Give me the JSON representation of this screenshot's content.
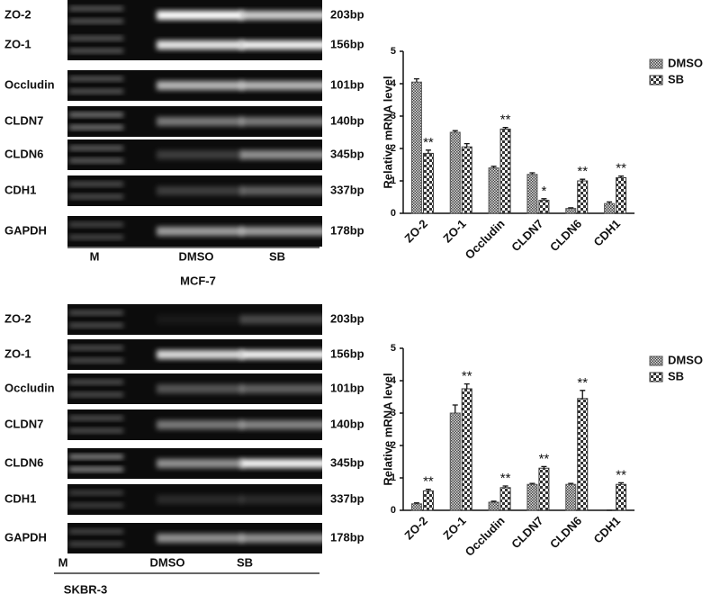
{
  "gels": [
    {
      "rows": [
        {
          "gene": "ZO-2",
          "size": "203bp"
        },
        {
          "gene": "ZO-1",
          "size": "156bp"
        },
        {
          "gene": "Occludin",
          "size": "101bp"
        },
        {
          "gene": "CLDN7",
          "size": "140bp"
        },
        {
          "gene": "CLDN6",
          "size": "345bp"
        },
        {
          "gene": "CDH1",
          "size": "337bp"
        },
        {
          "gene": "GAPDH",
          "size": "178bp"
        }
      ],
      "lanes": [
        "M",
        "DMSO",
        "SB"
      ],
      "cell_line": "MCF-7"
    },
    {
      "rows": [
        {
          "gene": "ZO-2",
          "size": "203bp"
        },
        {
          "gene": "ZO-1",
          "size": "156bp"
        },
        {
          "gene": "Occludin",
          "size": "101bp"
        },
        {
          "gene": "CLDN7",
          "size": "140bp"
        },
        {
          "gene": "CLDN6",
          "size": "345bp"
        },
        {
          "gene": "CDH1",
          "size": "337bp"
        },
        {
          "gene": "GAPDH",
          "size": "178bp"
        }
      ],
      "lanes": [
        "M",
        "DMSO",
        "SB"
      ],
      "cell_line": "SKBR-3"
    }
  ],
  "chart_data": [
    {
      "type": "bar",
      "ylabel": "Relative mRNA level",
      "categories": [
        "ZO-2",
        "ZO-1",
        "Occludin",
        "CLDN7",
        "CLDN6",
        "CDH1"
      ],
      "series": [
        {
          "name": "DMSO",
          "color": "#555555",
          "pattern": "fine",
          "values": [
            4.05,
            2.5,
            1.4,
            1.2,
            0.15,
            0.3
          ],
          "errors": [
            0.1,
            0.05,
            0.05,
            0.05,
            0.02,
            0.05
          ],
          "significance": [
            null,
            null,
            null,
            null,
            null,
            null
          ]
        },
        {
          "name": "SB",
          "color": "#333333",
          "pattern": "coarse",
          "values": [
            1.85,
            2.05,
            2.6,
            0.4,
            1.0,
            1.1
          ],
          "errors": [
            0.1,
            0.1,
            0.05,
            0.05,
            0.05,
            0.05
          ],
          "significance": [
            "**",
            null,
            "**",
            "*",
            "**",
            "**"
          ]
        }
      ],
      "ylim": [
        0,
        5
      ],
      "yticks": [
        0,
        1,
        2,
        3,
        4,
        5
      ],
      "legend": "upper right"
    },
    {
      "type": "bar",
      "ylabel": "Relative mRNA level",
      "categories": [
        "ZO-2",
        "ZO-1",
        "Occludin",
        "CLDN7",
        "CLDN6",
        "CDH1"
      ],
      "series": [
        {
          "name": "DMSO",
          "color": "#555555",
          "pattern": "fine",
          "values": [
            0.2,
            3.0,
            0.25,
            0.8,
            0.8,
            0
          ],
          "errors": [
            0.03,
            0.25,
            0.03,
            0.03,
            0.03,
            0
          ],
          "significance": [
            null,
            null,
            null,
            null,
            null,
            null
          ]
        },
        {
          "name": "SB",
          "color": "#333333",
          "pattern": "coarse",
          "values": [
            0.6,
            3.75,
            0.7,
            1.3,
            3.45,
            0.8
          ],
          "errors": [
            0.05,
            0.15,
            0.05,
            0.05,
            0.25,
            0.05
          ],
          "significance": [
            "**",
            "**",
            "**",
            "**",
            "**",
            "**"
          ]
        }
      ],
      "ylim": [
        0,
        5
      ],
      "yticks": [
        0,
        1,
        2,
        3,
        4,
        5
      ],
      "legend": "upper right"
    }
  ]
}
